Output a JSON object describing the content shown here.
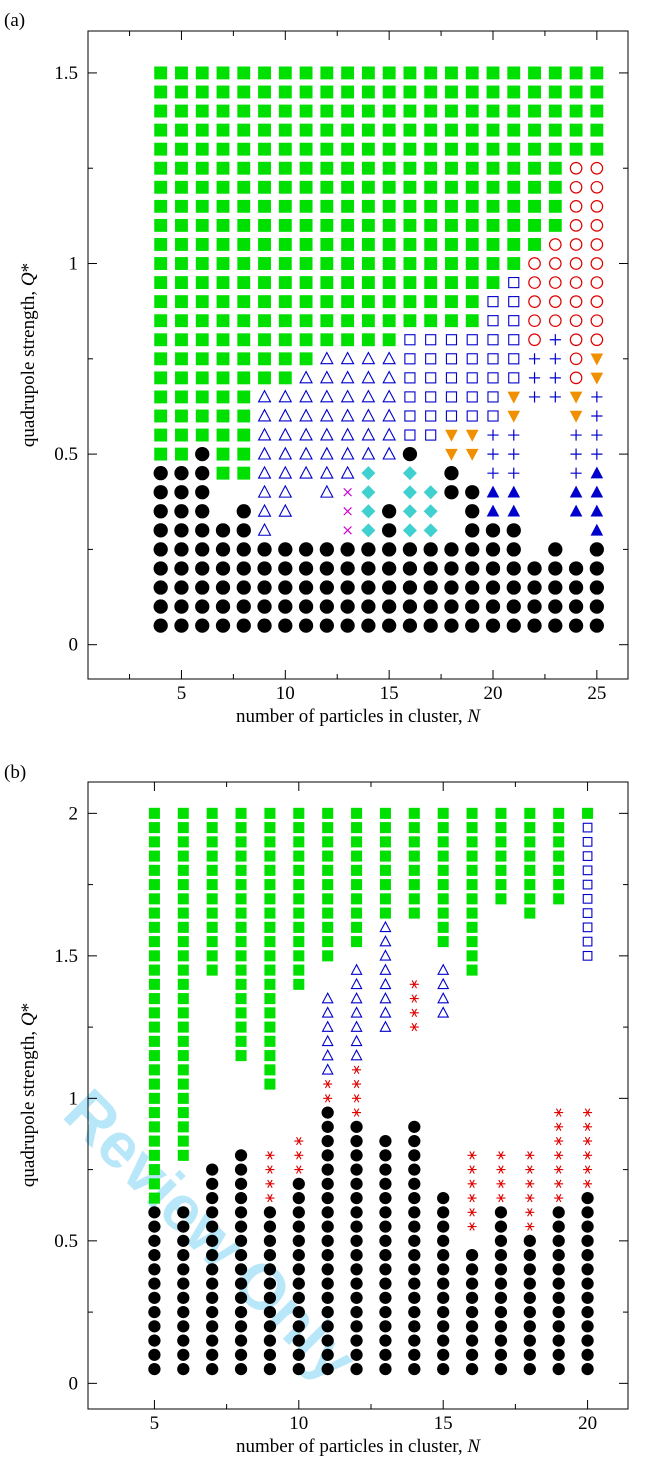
{
  "figure": {
    "watermark": "Review Only",
    "colors": {
      "green": "#00e000",
      "black": "#000000",
      "blue": "#0000cc",
      "red": "#e00000",
      "orange": "#f09000",
      "cyan": "#40d0d0",
      "magenta": "#d000d0"
    }
  },
  "chart_data": [
    {
      "panel": "(a)",
      "type": "scatter",
      "xlabel": "number of particles in cluster, N",
      "ylabel": "quadrupole strength, Q*",
      "xlim": [
        0.5,
        26.5
      ],
      "ylim": [
        -0.09,
        1.61
      ],
      "xticks": [
        5,
        10,
        15,
        20,
        25
      ],
      "xtick_labels": [
        "5",
        "10",
        "15",
        "20",
        "25"
      ],
      "yticks": [
        0,
        0.5,
        1,
        1.5
      ],
      "ytick_labels": [
        "0",
        "0.5",
        "1",
        "1.5"
      ],
      "q_grid": [
        0.05,
        0.1,
        0.15,
        0.2,
        0.25,
        0.3,
        0.35,
        0.4,
        0.45,
        0.5,
        0.55,
        0.6,
        0.65,
        0.7,
        0.75,
        0.8,
        0.85,
        0.9,
        0.95,
        1.0,
        1.05,
        1.1,
        1.15,
        1.2,
        1.25,
        1.3,
        1.35,
        1.4,
        1.45,
        1.5
      ],
      "structure_map": {
        "4": "BBBBBBBBBGGGGGGGGGGGGGGGGGGGGG",
        "5": "BBBBBBBBBGGGGGGGGGGGGGGGGGGGGG",
        "6": "BBBBBBBBBBGGGGGGGGGGGGGGGGGGGG",
        "7": "BBBBBB..GGGGGGGGGGGGGGGGGGGGGG",
        "8": "BBBBBBB.GGGGGGGGGGGGGGGGGGGGGG",
        "9": "BBBBBTTTTTTTTGGGGGGGGGGGGGGGGG",
        "10": "BBBBB.TTTTTTTGGGGGGGGGGGGGGGGG",
        "11": "BBBBB...TTTTTTGGGGGGGGGGGGGGGG",
        "12": "BBBBB..TTTTTTTTGGGGGGGGGGGGGGG",
        "13": "BBBBBXXXTTTTTTTGGGGGGGGGGGGGGG",
        "14": "BBBBBDDDDTTTTTTGGGGGGGGGGGGGGG",
        "15": "BBBBBBB..TTTTTTGGGGGGGGGGGGGGG",
        "16": "BBBBBDDDDNSSSSSSGGGGGGGGGGGGGG",
        "17": "BBBBBDDD..SSSSSSGGGGGGGGGGGGGG",
        "18": "BBBBB..BBVVSSSSSGGGGGGGGGGGGGG",
        "19": "BBBBBBBB.VVSSSSSGGGGGGGGGGGGGG",
        "20": "BBBBBBUUPPPSSSSSSSGGGGGGGGGGGG",
        "21": "BBBBBBUUPPPVVSSSSSSGGGGGGGGGGG",
        "22": "BBBB........PPPOOOOOGGGGGGGGGG",
        "23": "BBBBB.......PPPPOOOOOGGGGGGGGG",
        "24": "BBBB..UUPPPVVOOOOOOOOOOOOGGGGG",
        "25": "BBBBBUUUUPPPPVVOOOOOOOOOOGGGGG"
      }
    },
    {
      "panel": "(b)",
      "type": "scatter",
      "xlabel": "number of particles in cluster, N",
      "ylabel": "quadrupole strength, Q*",
      "xlim": [
        2.7,
        21.4
      ],
      "ylim": [
        -0.09,
        2.11
      ],
      "xticks": [
        5,
        10,
        15,
        20
      ],
      "xtick_labels": [
        "5",
        "10",
        "15",
        "20"
      ],
      "yticks": [
        0,
        0.5,
        1,
        1.5,
        2
      ],
      "ytick_labels": [
        "0",
        "0.5",
        "1",
        "1.5",
        "2"
      ],
      "q_step": 0.05,
      "columns": [
        {
          "N": 5,
          "runs": [
            [
              "B",
              0.05,
              0.6
            ],
            [
              "G",
              0.65,
              2.0
            ]
          ]
        },
        {
          "N": 6,
          "runs": [
            [
              "B",
              0.05,
              0.6
            ],
            [
              "G",
              0.8,
              2.0
            ]
          ]
        },
        {
          "N": 7,
          "runs": [
            [
              "B",
              0.05,
              0.75
            ],
            [
              "G",
              1.45,
              2.0
            ]
          ]
        },
        {
          "N": 8,
          "runs": [
            [
              "B",
              0.05,
              0.8
            ],
            [
              "G",
              1.15,
              2.0
            ]
          ]
        },
        {
          "N": 9,
          "runs": [
            [
              "B",
              0.05,
              0.6
            ],
            [
              "A",
              0.65,
              0.8
            ],
            [
              "G",
              1.05,
              2.0
            ]
          ]
        },
        {
          "N": 10,
          "runs": [
            [
              "B",
              0.05,
              0.7
            ],
            [
              "A",
              0.75,
              0.85
            ],
            [
              "G",
              1.4,
              2.0
            ]
          ]
        },
        {
          "N": 11,
          "runs": [
            [
              "B",
              0.05,
              0.95
            ],
            [
              "A",
              1.0,
              1.05
            ],
            [
              "T",
              1.1,
              1.35
            ],
            [
              "G",
              1.5,
              2.0
            ]
          ]
        },
        {
          "N": 12,
          "runs": [
            [
              "B",
              0.05,
              0.9
            ],
            [
              "A",
              0.95,
              1.1
            ],
            [
              "T",
              1.15,
              1.45
            ],
            [
              "G",
              1.55,
              2.0
            ]
          ]
        },
        {
          "N": 13,
          "runs": [
            [
              "B",
              0.05,
              0.85
            ],
            [
              "T",
              1.25,
              1.6
            ],
            [
              "G",
              1.65,
              2.0
            ]
          ]
        },
        {
          "N": 14,
          "runs": [
            [
              "B",
              0.05,
              0.9
            ],
            [
              "A",
              1.25,
              1.4
            ],
            [
              "G",
              1.65,
              2.0
            ]
          ]
        },
        {
          "N": 15,
          "runs": [
            [
              "B",
              0.05,
              0.65
            ],
            [
              "T",
              1.3,
              1.45
            ],
            [
              "G",
              1.55,
              2.0
            ]
          ]
        },
        {
          "N": 16,
          "runs": [
            [
              "B",
              0.05,
              0.45
            ],
            [
              "A",
              0.55,
              0.8
            ],
            [
              "G",
              1.45,
              2.0
            ]
          ]
        },
        {
          "N": 17,
          "runs": [
            [
              "B",
              0.05,
              0.6
            ],
            [
              "A",
              0.65,
              0.8
            ],
            [
              "G",
              1.7,
              2.0
            ]
          ]
        },
        {
          "N": 18,
          "runs": [
            [
              "B",
              0.05,
              0.5
            ],
            [
              "A",
              0.55,
              0.8
            ],
            [
              "G",
              1.65,
              2.0
            ]
          ]
        },
        {
          "N": 19,
          "runs": [
            [
              "B",
              0.05,
              0.6
            ],
            [
              "A",
              0.65,
              0.95
            ],
            [
              "G",
              1.7,
              2.0
            ]
          ]
        },
        {
          "N": 20,
          "runs": [
            [
              "B",
              0.05,
              0.65
            ],
            [
              "A",
              0.7,
              0.95
            ],
            [
              "S",
              1.5,
              1.95
            ],
            [
              "G",
              2.0,
              2.0
            ]
          ]
        }
      ]
    }
  ]
}
